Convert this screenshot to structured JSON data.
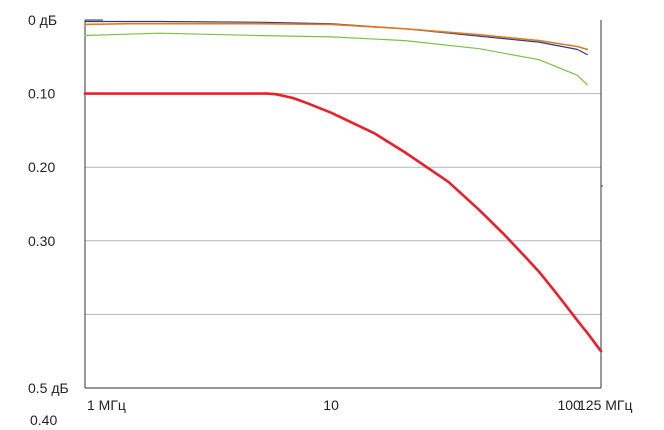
{
  "chart_data": {
    "type": "line",
    "x_scale": "log",
    "xlim": [
      1,
      125
    ],
    "ylim": [
      0,
      0.5
    ],
    "y_inverted": true,
    "grid": true,
    "y_gridlines": [
      0.1,
      0.2,
      0.3,
      0.4
    ],
    "y_tick_labels": [
      {
        "value": 0,
        "text": "0 дБ"
      },
      {
        "value": 0.1,
        "text": "0.10"
      },
      {
        "value": 0.2,
        "text": "0.20"
      },
      {
        "value": 0.3,
        "text": "0.30"
      },
      {
        "value": 0.5,
        "text": "0.5 дБ"
      }
    ],
    "extra_label": {
      "value": 0.4,
      "text": "0.40"
    },
    "x_tick_labels": [
      {
        "value": 1,
        "text": "1  МГц"
      },
      {
        "value": 10,
        "text": "10"
      },
      {
        "value": 100,
        "text": "100"
      },
      {
        "value": 125,
        "text": "125  МГц"
      }
    ],
    "series": [
      {
        "color": "#e8202a",
        "width": 2.6,
        "x": [
          1,
          2,
          3,
          4,
          5,
          5.5,
          6,
          7,
          8,
          10,
          15,
          20,
          30,
          40,
          50,
          60,
          70,
          80,
          90,
          100,
          110,
          125
        ],
        "y": [
          0.1,
          0.1,
          0.1,
          0.1,
          0.1,
          0.1,
          0.101,
          0.106,
          0.113,
          0.126,
          0.154,
          0.18,
          0.22,
          0.258,
          0.29,
          0.318,
          0.342,
          0.366,
          0.388,
          0.408,
          0.425,
          0.45
        ]
      },
      {
        "color": "#2a3a8c",
        "width": 1.2,
        "x": [
          1,
          2,
          5,
          10,
          20,
          40,
          70,
          100,
          110
        ],
        "y": [
          0.002,
          0.002,
          0.003,
          0.005,
          0.012,
          0.022,
          0.03,
          0.04,
          0.047
        ]
      },
      {
        "color": "#e07a1e",
        "width": 1.6,
        "x": [
          1,
          1.5,
          2,
          5,
          10,
          20,
          40,
          70,
          100,
          110
        ],
        "y": [
          0.006,
          0.005,
          0.005,
          0.005,
          0.006,
          0.012,
          0.02,
          0.028,
          0.036,
          0.04
        ]
      },
      {
        "color": "#7cc242",
        "width": 1.2,
        "x": [
          1,
          2,
          5,
          10,
          20,
          40,
          70,
          100,
          110
        ],
        "y": [
          0.021,
          0.018,
          0.021,
          0.023,
          0.028,
          0.039,
          0.054,
          0.075,
          0.088
        ]
      }
    ]
  }
}
